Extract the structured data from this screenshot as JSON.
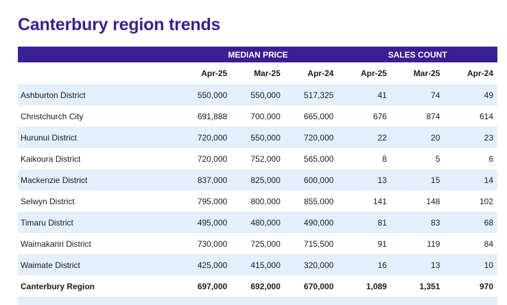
{
  "title": "Canterbury region trends",
  "group_headers": {
    "median_price": "MEDIAN PRICE",
    "sales_count": "SALES COUNT"
  },
  "columns": [
    "Apr-25",
    "Mar-25",
    "Apr-24",
    "Apr-25",
    "Mar-25",
    "Apr-24"
  ],
  "rows": [
    {
      "name": "Ashburton District",
      "values": [
        "550,000",
        "550,000",
        "517,325",
        "41",
        "74",
        "49"
      ]
    },
    {
      "name": "Christchurch City",
      "values": [
        "691,888",
        "700,000",
        "665,000",
        "676",
        "874",
        "614"
      ]
    },
    {
      "name": "Hurunui District",
      "values": [
        "720,000",
        "550,000",
        "720,000",
        "22",
        "20",
        "23"
      ]
    },
    {
      "name": "Kaikoura District",
      "values": [
        "720,000",
        "752,000",
        "565,000",
        "8",
        "5",
        "6"
      ]
    },
    {
      "name": "Mackenzie District",
      "values": [
        "837,000",
        "825,000",
        "600,000",
        "13",
        "15",
        "14"
      ]
    },
    {
      "name": "Selwyn District",
      "values": [
        "795,000",
        "800,000",
        "855,000",
        "141",
        "148",
        "102"
      ]
    },
    {
      "name": "Timaru District",
      "values": [
        "495,000",
        "480,000",
        "490,000",
        "81",
        "83",
        "68"
      ]
    },
    {
      "name": "Waimakariri District",
      "values": [
        "730,000",
        "725,000",
        "715,500",
        "91",
        "119",
        "84"
      ]
    },
    {
      "name": "Waimate District",
      "values": [
        "425,000",
        "415,000",
        "320,000",
        "16",
        "13",
        "10"
      ]
    }
  ],
  "total": {
    "name": "Canterbury Region",
    "values": [
      "697,000",
      "692,000",
      "670,000",
      "1,089",
      "1,351",
      "970"
    ]
  }
}
